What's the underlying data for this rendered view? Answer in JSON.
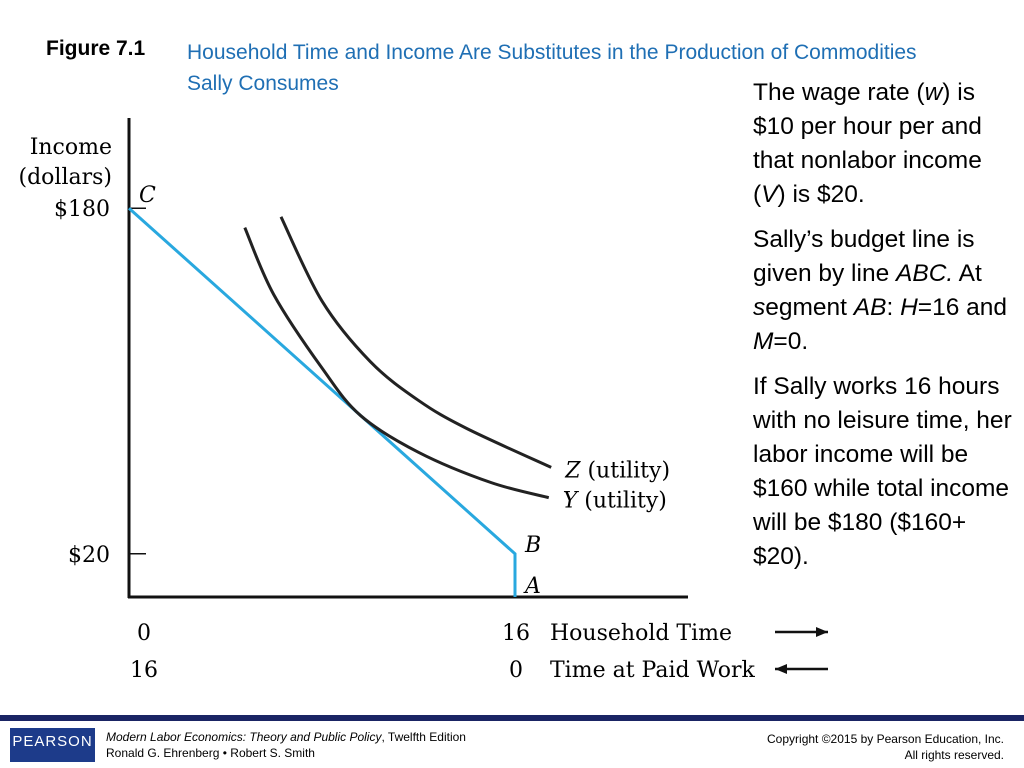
{
  "header": {
    "figure_label": "Figure 7.1",
    "title": "Household Time and Income Are Substitutes in the Production of Commodities Sally Consumes"
  },
  "notes": {
    "p1": [
      "The wage rate (",
      "w",
      ") is $10 per hour per and that nonlabor income (",
      "V",
      ") is  $20."
    ],
    "p2": [
      "Sally’s budget line is given by line ",
      "ABC.",
      " At ",
      "s",
      "egment ",
      "AB",
      ": ",
      "H",
      "=16 and ",
      "M",
      "=0."
    ],
    "p3": "If Sally works 16 hours with no leisure time, her labor income will be $160 while total income will be $180 ($160+ $20)."
  },
  "chart_data": {
    "type": "line",
    "ylabel": [
      "Income",
      "(dollars)"
    ],
    "yticks": [
      "$180",
      "$20"
    ],
    "ytick_values": [
      180,
      20
    ],
    "xaxis_top": {
      "ticks": [
        "0",
        "16"
      ],
      "label": "Household Time",
      "direction": "right"
    },
    "xaxis_bottom": {
      "ticks": [
        "16",
        "0"
      ],
      "label": "Time at Paid Work",
      "direction": "left"
    },
    "xlim": [
      0,
      18.5
    ],
    "ylim": [
      0,
      200
    ],
    "budget_line": {
      "color": "#29a8df",
      "points": [
        [
          0,
          180
        ],
        [
          16,
          20
        ],
        [
          16,
          0
        ]
      ],
      "labels": {
        "C": [
          0,
          180
        ],
        "B": [
          16,
          20
        ],
        "A": [
          16,
          0
        ]
      }
    },
    "curves": [
      {
        "name": "Y (utility)",
        "color": "#222222",
        "points": [
          [
            4.8,
            171
          ],
          [
            6,
            140
          ],
          [
            8,
            106
          ],
          [
            9.6,
            84
          ],
          [
            12,
            67
          ],
          [
            15,
            53
          ],
          [
            17.4,
            46
          ]
        ]
      },
      {
        "name": "Z (utility)",
        "color": "#222222",
        "points": [
          [
            6.3,
            176
          ],
          [
            8,
            137
          ],
          [
            10,
            109
          ],
          [
            12,
            91
          ],
          [
            14,
            78
          ],
          [
            17.5,
            60
          ]
        ]
      }
    ]
  },
  "footer": {
    "logo": "PEARSON",
    "book_title": "Modern Labor Economics: Theory and Public Policy",
    "edition": ", Twelfth Edition",
    "authors": "Ronald G. Ehrenberg • Robert S. Smith",
    "copyright": "Copyright ©2015 by Pearson Education, Inc.",
    "rights": "All rights reserved."
  }
}
